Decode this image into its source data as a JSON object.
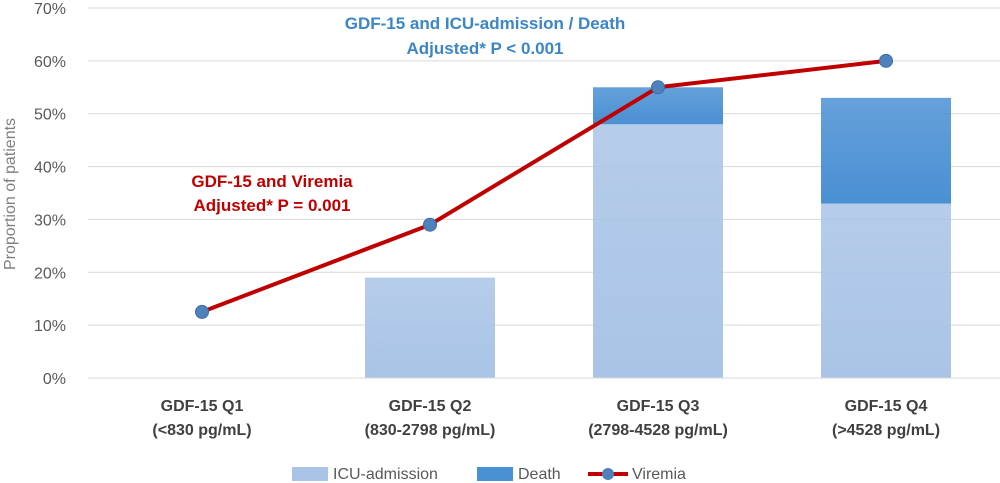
{
  "chart_data": {
    "type": "bar",
    "stacked": true,
    "categories": [
      [
        "GDF-15 Q1",
        "(<830 pg/mL)"
      ],
      [
        "GDF-15 Q2",
        "(830-2798 pg/mL)"
      ],
      [
        "GDF-15 Q3",
        "(2798-4528 pg/mL)"
      ],
      [
        "GDF-15 Q4",
        "(>4528 pg/mL)"
      ]
    ],
    "series": [
      {
        "name": "ICU-admission",
        "kind": "bar",
        "color": "#a9c4e6",
        "values": [
          0,
          19,
          48,
          33
        ]
      },
      {
        "name": "Death",
        "kind": "bar",
        "color": "#4a90d4",
        "values": [
          0,
          0,
          7,
          20
        ]
      },
      {
        "name": "Viremia",
        "kind": "line",
        "color": "#c00000",
        "marker_color": "#4f81bd",
        "values": [
          12.5,
          29,
          55,
          60
        ]
      }
    ],
    "ylabel": "Proportion of patients",
    "ylim": [
      0,
      70
    ],
    "yticks": [
      0,
      10,
      20,
      30,
      40,
      50,
      60,
      70
    ],
    "ytick_labels": [
      "0%",
      "10%",
      "20%",
      "30%",
      "40%",
      "50%",
      "60%",
      "70%"
    ],
    "grid": true,
    "legend_position": "bottom",
    "annotations": {
      "icu_death": [
        "GDF-15 and ICU-admission / Death",
        "Adjusted* P < 0.001"
      ],
      "viremia": [
        "GDF-15 and Viremia",
        "Adjusted* P = 0.001"
      ]
    }
  }
}
